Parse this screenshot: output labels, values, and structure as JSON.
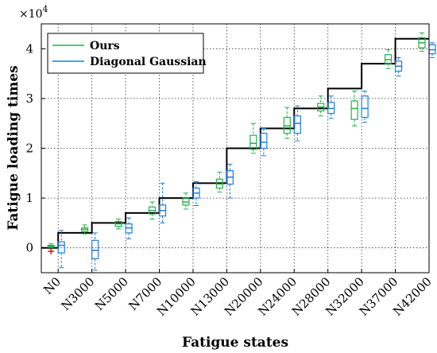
{
  "chart_data": {
    "type": "box",
    "xlabel": "Fatigue states",
    "ylabel": "Fatigue loading times",
    "y_multiplier_label": "×10",
    "y_multiplier_exp": "4",
    "ylim": [
      -0.5,
      4.5
    ],
    "yticks": [
      0,
      1,
      2,
      3,
      4
    ],
    "grid": true,
    "legend_position": "top-left",
    "categories": [
      "N0",
      "N3000",
      "N5000",
      "N7000",
      "N10000",
      "N13000",
      "N20000",
      "N24000",
      "N28000",
      "N32000",
      "N37000",
      "N42000"
    ],
    "true_values": [
      0,
      0.3,
      0.5,
      0.7,
      1.0,
      1.3,
      2.0,
      2.4,
      2.8,
      3.2,
      3.7,
      4.2
    ],
    "series": [
      {
        "name": "Ours",
        "color": "#22b14c",
        "boxes": [
          {
            "lw": -0.02,
            "q1": 0.01,
            "med": 0.03,
            "q3": 0.05,
            "uw": 0.08,
            "outliers": [
              -0.07
            ]
          },
          {
            "lw": 0.28,
            "q1": 0.33,
            "med": 0.37,
            "q3": 0.4,
            "uw": 0.46,
            "outliers": []
          },
          {
            "lw": 0.38,
            "q1": 0.43,
            "med": 0.48,
            "q3": 0.53,
            "uw": 0.58,
            "outliers": []
          },
          {
            "lw": 0.58,
            "q1": 0.68,
            "med": 0.75,
            "q3": 0.82,
            "uw": 0.92,
            "outliers": []
          },
          {
            "lw": 0.78,
            "q1": 0.86,
            "med": 0.92,
            "q3": 1.0,
            "uw": 1.1,
            "outliers": []
          },
          {
            "lw": 1.12,
            "q1": 1.2,
            "med": 1.28,
            "q3": 1.38,
            "uw": 1.52,
            "outliers": []
          },
          {
            "lw": 1.9,
            "q1": 1.98,
            "med": 2.1,
            "q3": 2.26,
            "uw": 2.5,
            "outliers": []
          },
          {
            "lw": 2.2,
            "q1": 2.3,
            "med": 2.45,
            "q3": 2.62,
            "uw": 2.82,
            "outliers": []
          },
          {
            "lw": 2.65,
            "q1": 2.75,
            "med": 2.83,
            "q3": 2.9,
            "uw": 3.05,
            "outliers": []
          },
          {
            "lw": 2.45,
            "q1": 2.58,
            "med": 2.8,
            "q3": 2.95,
            "uw": 3.15,
            "outliers": []
          },
          {
            "lw": 3.6,
            "q1": 3.7,
            "med": 3.78,
            "q3": 3.88,
            "uw": 3.98,
            "outliers": []
          },
          {
            "lw": 3.95,
            "q1": 4.02,
            "med": 4.12,
            "q3": 4.22,
            "uw": 4.32,
            "outliers": []
          }
        ]
      },
      {
        "name": "Diagonal Gaussian",
        "color": "#1a7fe0",
        "boxes": [
          {
            "lw": -0.4,
            "q1": -0.1,
            "med": 0.05,
            "q3": 0.12,
            "uw": 0.35,
            "outliers": []
          },
          {
            "lw": -0.45,
            "q1": -0.22,
            "med": -0.05,
            "q3": 0.15,
            "uw": 0.3,
            "outliers": []
          },
          {
            "lw": 0.18,
            "q1": 0.3,
            "med": 0.4,
            "q3": 0.48,
            "uw": 0.6,
            "outliers": []
          },
          {
            "lw": 0.5,
            "q1": 0.64,
            "med": 0.75,
            "q3": 0.86,
            "uw": 1.3,
            "outliers": []
          },
          {
            "lw": 0.85,
            "q1": 1.0,
            "med": 1.1,
            "q3": 1.2,
            "uw": 1.33,
            "outliers": []
          },
          {
            "lw": 1.0,
            "q1": 1.28,
            "med": 1.42,
            "q3": 1.55,
            "uw": 1.68,
            "outliers": []
          },
          {
            "lw": 1.85,
            "q1": 2.0,
            "med": 2.12,
            "q3": 2.3,
            "uw": 2.4,
            "outliers": []
          },
          {
            "lw": 2.15,
            "q1": 2.3,
            "med": 2.5,
            "q3": 2.65,
            "uw": 2.85,
            "outliers": []
          },
          {
            "lw": 2.6,
            "q1": 2.7,
            "med": 2.8,
            "q3": 2.92,
            "uw": 3.05,
            "outliers": []
          },
          {
            "lw": 2.52,
            "q1": 2.62,
            "med": 2.8,
            "q3": 3.05,
            "uw": 3.15,
            "outliers": []
          },
          {
            "lw": 3.45,
            "q1": 3.55,
            "med": 3.65,
            "q3": 3.75,
            "uw": 3.82,
            "outliers": []
          },
          {
            "lw": 3.82,
            "q1": 3.9,
            "med": 3.98,
            "q3": 4.08,
            "uw": 4.12,
            "outliers": []
          }
        ]
      }
    ],
    "step_line_color": "#000000",
    "outlier_color": "#e0101a"
  }
}
